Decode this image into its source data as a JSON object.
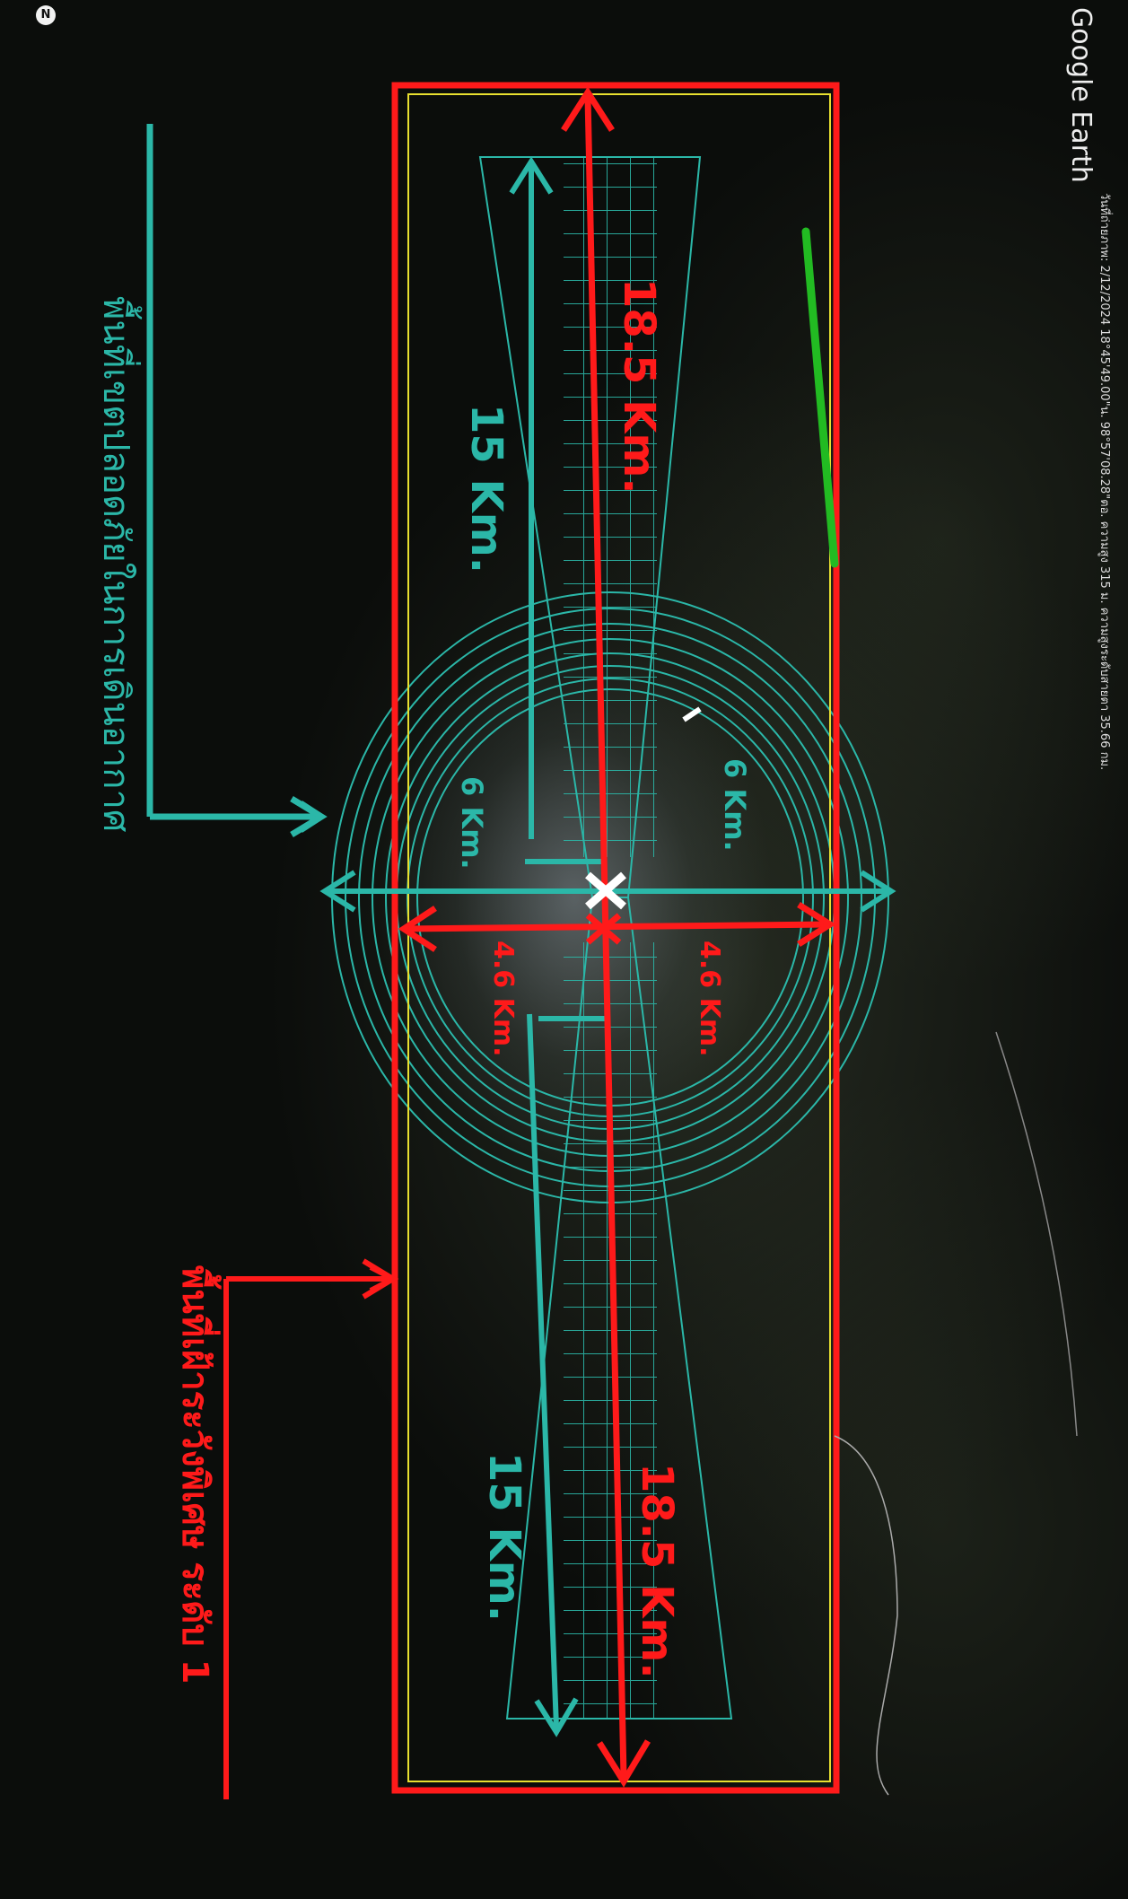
{
  "brand": "Google Earth",
  "north_indicator": "N",
  "status_bar": {
    "text": "วันที่ถ่ายภาพ: 2/12/2024    18°45'49.00\"น.  98°57'08.28\"ตอ.  ความสูง  315 ม.   ความสูงระดับสายตา  35.66 กม."
  },
  "legend": {
    "flight_safety_zone": "พื้นที่เขตปลอดภัยในการเดินอากาศ",
    "surveillance_zone": "พื้นที่เฝ้าระวังพิเศษ ระดับ 1"
  },
  "dimensions": {
    "teal_half_length": "15 Km.",
    "red_half_length": "18.5 Km.",
    "teal_radius": "6 Km.",
    "red_radius": "4.6 Km."
  },
  "colors": {
    "red": "#ff1a1a",
    "teal": "#2bb7a8",
    "green": "#22bb22",
    "yellow": "#e8e030",
    "white": "#ffffff"
  }
}
